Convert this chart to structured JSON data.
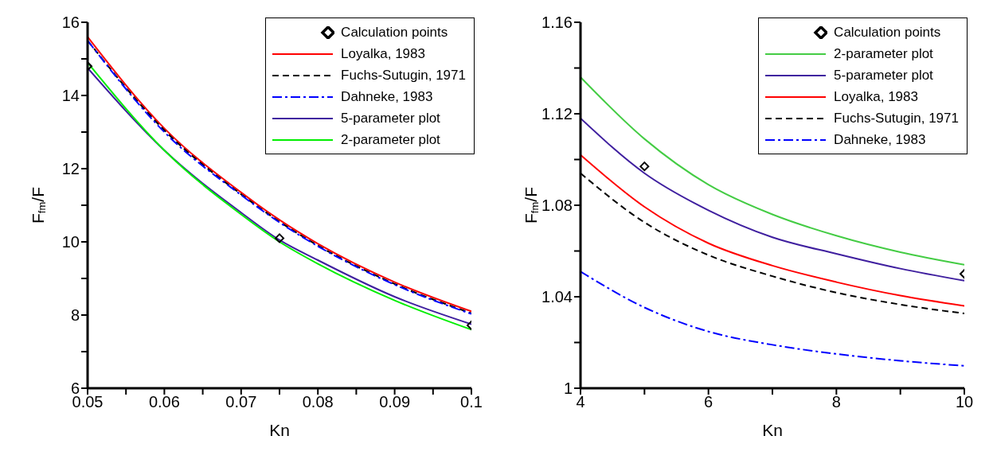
{
  "chart_data": [
    {
      "type": "line",
      "xlabel": "Kn",
      "ylabel": "F$_{fm}$/F",
      "xlim": [
        0.05,
        0.1
      ],
      "ylim": [
        6,
        16
      ],
      "xticks": [
        0.05,
        {
          "value": 0.055,
          "label": null
        },
        0.06,
        {
          "value": 0.065,
          "label": null
        },
        0.07,
        {
          "value": 0.075,
          "label": null
        },
        0.08,
        {
          "value": 0.085,
          "label": null
        },
        0.09,
        {
          "value": 0.095,
          "label": null
        },
        0.1
      ],
      "yticks": [
        6,
        {
          "value": 7,
          "label": null
        },
        8,
        {
          "value": 9,
          "label": null
        },
        10,
        {
          "value": 11,
          "label": null
        },
        12,
        {
          "value": 13,
          "label": null
        },
        14,
        {
          "value": 15,
          "label": null
        },
        16
      ],
      "grid": false,
      "legend": "top right",
      "x": [
        0.05,
        0.06,
        0.07,
        0.075,
        0.08,
        0.09,
        0.1
      ],
      "series": [
        {
          "name": "Calculation points",
          "type": "scatter",
          "marker": "diamond",
          "color": "#000000",
          "x": [
            0.05,
            0.075,
            0.1
          ],
          "values": [
            14.8,
            10.1,
            7.72
          ]
        },
        {
          "name": "Loyalka, 1983",
          "color": "#ff0000",
          "line_style": "solid",
          "values": [
            15.6,
            13.1,
            11.35,
            10.6,
            9.95,
            8.9,
            8.1
          ]
        },
        {
          "name": "Fuchs-Sutugin, 1971",
          "color": "#000000",
          "line_style": "dashed",
          "values": [
            15.5,
            13.05,
            11.3,
            10.55,
            9.9,
            8.85,
            8.05
          ]
        },
        {
          "name": "Dahneke, 1983",
          "color": "#0000ff",
          "line_style": "dashdot",
          "values": [
            15.5,
            13.0,
            11.28,
            10.53,
            9.88,
            8.83,
            8.03
          ]
        },
        {
          "name": "5-parameter plot",
          "color": "#3f1f9f",
          "line_style": "solid",
          "values": [
            14.75,
            12.5,
            10.8,
            10.05,
            9.5,
            8.5,
            7.75
          ]
        },
        {
          "name": "2-parameter plot",
          "color": "#00ee00",
          "line_style": "solid",
          "values": [
            14.9,
            12.5,
            10.75,
            10.0,
            9.4,
            8.4,
            7.6
          ]
        }
      ]
    },
    {
      "type": "line",
      "xlabel": "Kn",
      "ylabel": "F$_{fm}$/F",
      "xlim": [
        4,
        10
      ],
      "ylim": [
        1,
        1.16
      ],
      "xticks": [
        4,
        {
          "value": 5,
          "label": null
        },
        6,
        {
          "value": 7,
          "label": null
        },
        8,
        {
          "value": 9,
          "label": null
        },
        10
      ],
      "yticks": [
        1,
        {
          "value": 1.02,
          "label": null
        },
        1.04,
        {
          "value": 1.06,
          "label": null
        },
        1.08,
        {
          "value": 1.1,
          "label": null
        },
        1.12,
        {
          "value": 1.14,
          "label": null
        },
        1.16
      ],
      "grid": false,
      "legend": "top right",
      "x": [
        4,
        5,
        6,
        7,
        8,
        9,
        10
      ],
      "series": [
        {
          "name": "Calculation points",
          "type": "scatter",
          "marker": "diamond",
          "color": "#000000",
          "x": [
            5,
            10
          ],
          "values": [
            1.097,
            1.05
          ]
        },
        {
          "name": "2-parameter plot",
          "color": "#44cc44",
          "line_style": "solid",
          "values": [
            1.136,
            1.109,
            1.089,
            1.076,
            1.0667,
            1.0595,
            1.054
          ]
        },
        {
          "name": "5-parameter plot",
          "color": "#3f1f9f",
          "line_style": "solid",
          "values": [
            1.118,
            1.094,
            1.0778,
            1.066,
            1.0588,
            1.0523,
            1.047
          ]
        },
        {
          "name": "Loyalka, 1983",
          "color": "#ff0000",
          "line_style": "solid",
          "values": [
            1.102,
            1.0793,
            1.0634,
            1.0536,
            1.0464,
            1.0405,
            1.036
          ]
        },
        {
          "name": "Fuchs-Sutugin, 1971",
          "color": "#000000",
          "line_style": "dashed",
          "values": [
            1.094,
            1.0725,
            1.0582,
            1.049,
            1.0418,
            1.0366,
            1.0327
          ]
        },
        {
          "name": "Dahneke, 1983",
          "color": "#0000ff",
          "line_style": "dashdot",
          "values": [
            1.051,
            1.0353,
            1.0248,
            1.019,
            1.015,
            1.012,
            1.0098
          ]
        }
      ]
    }
  ]
}
